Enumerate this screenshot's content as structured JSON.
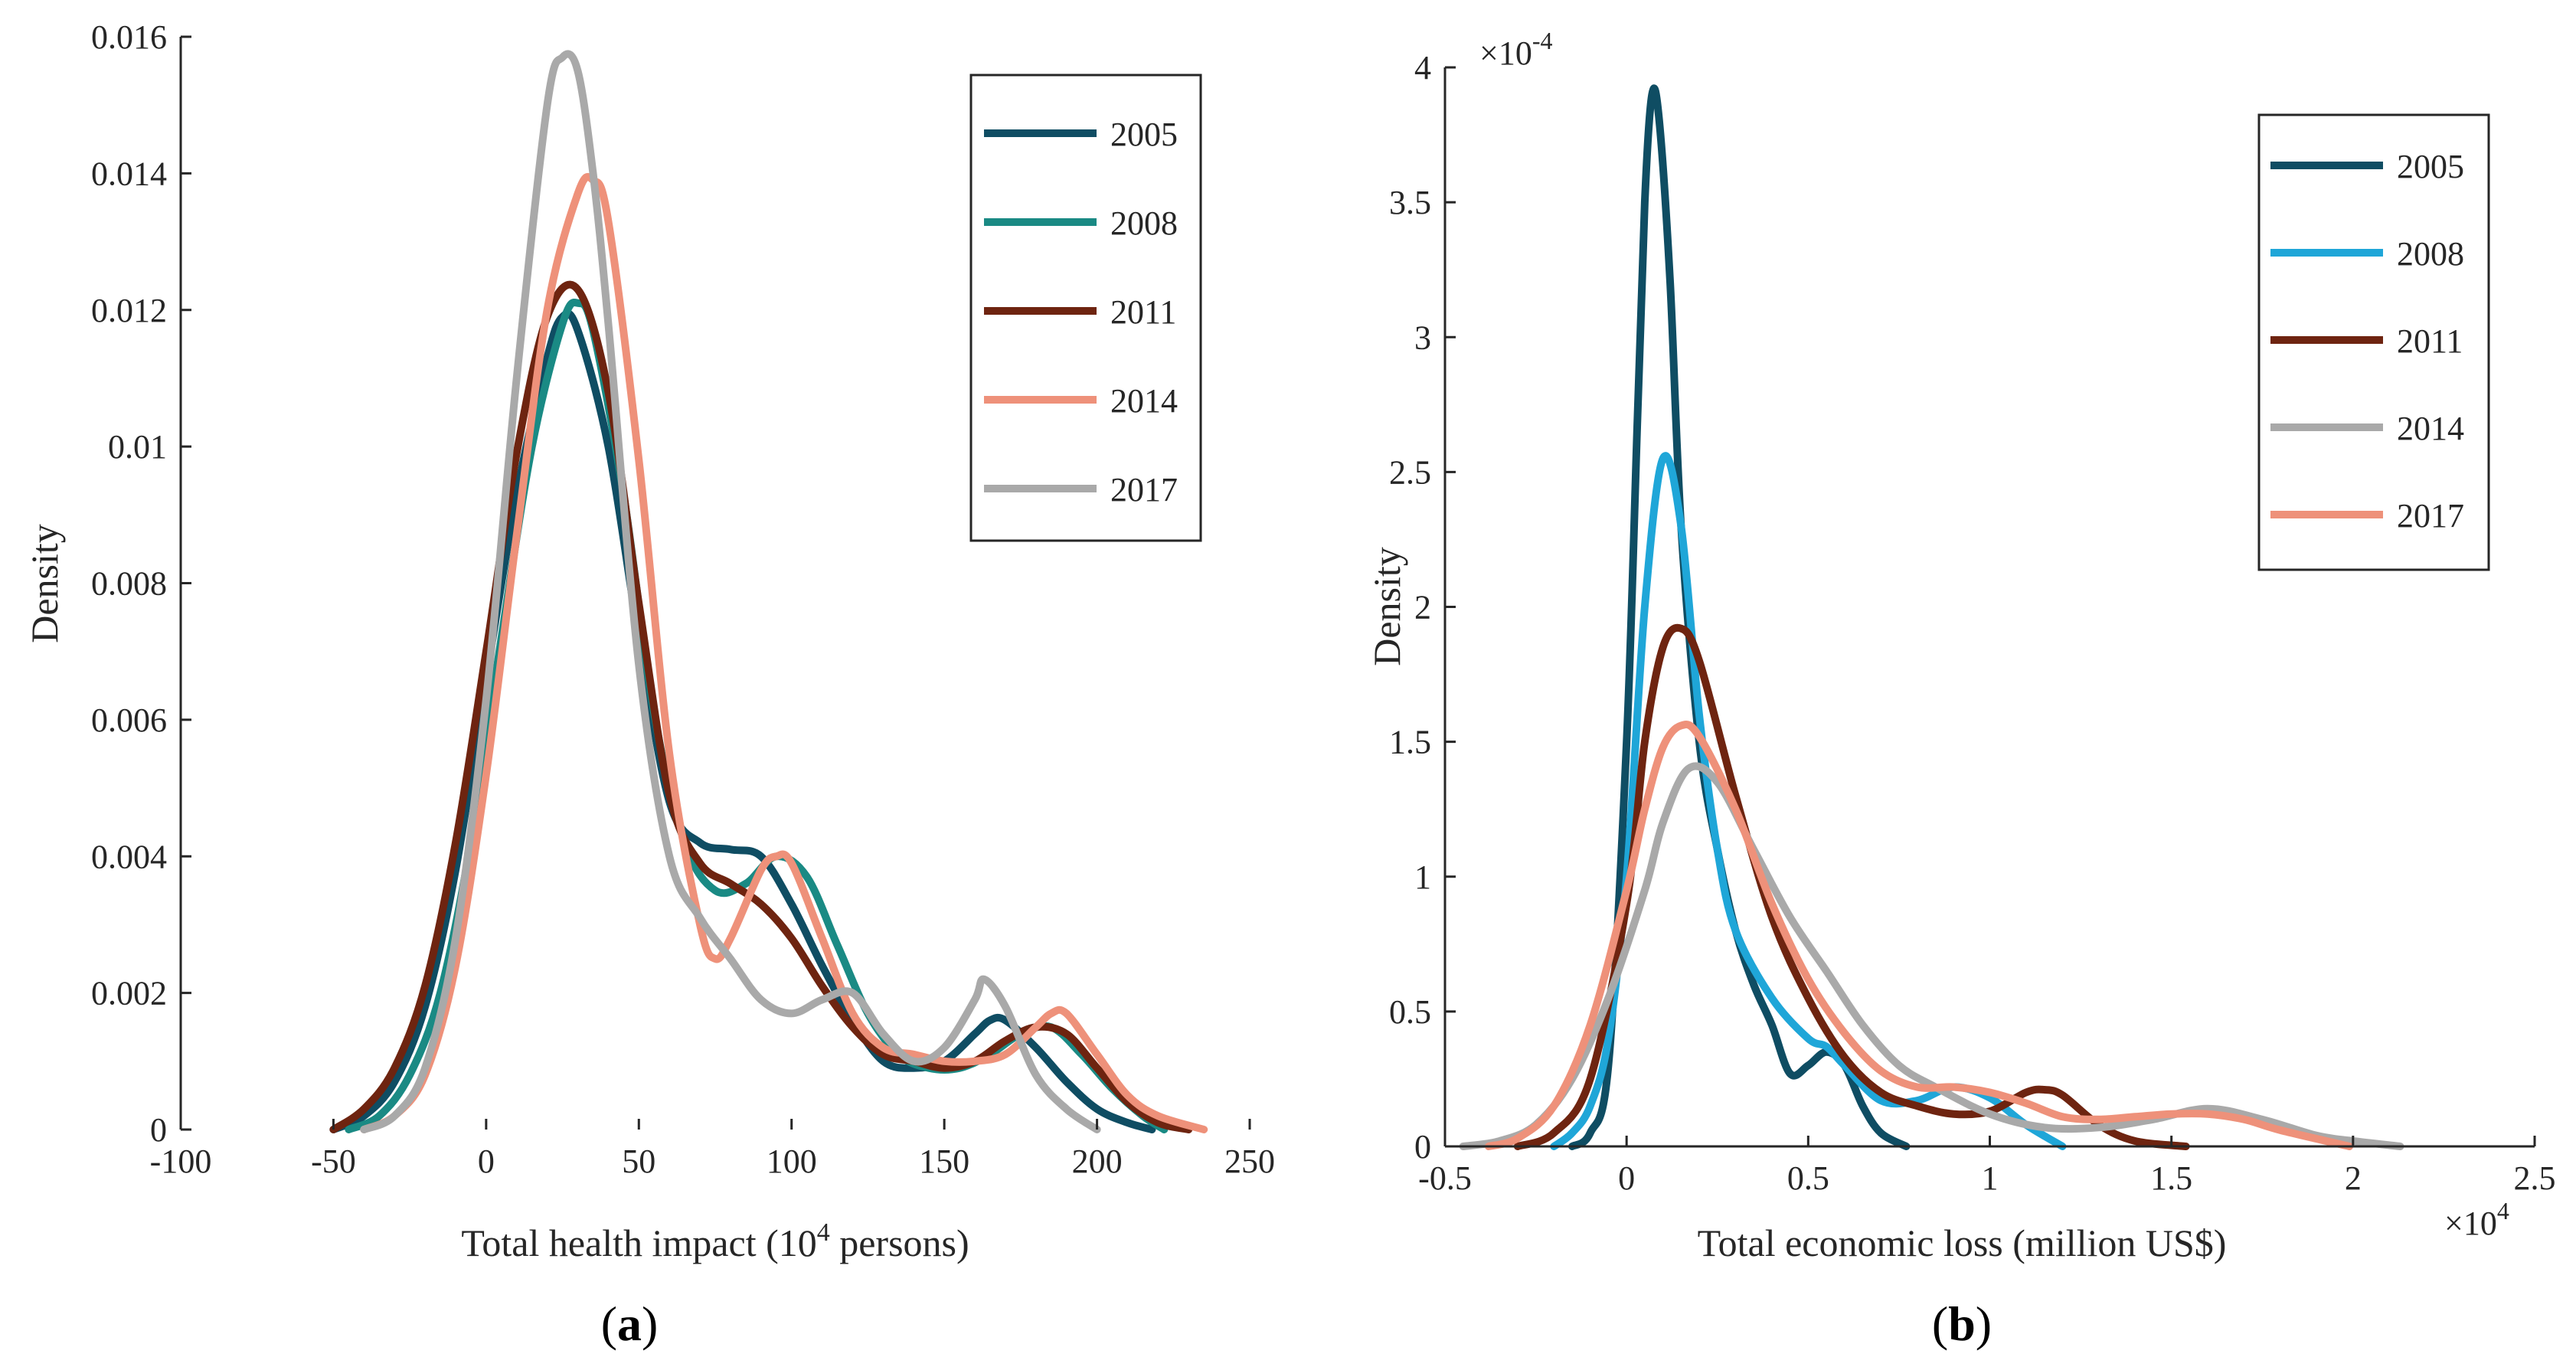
{
  "panels": [
    {
      "label_open": "(",
      "label_letter": "a",
      "label_close": ")",
      "chart_data": {
        "type": "line",
        "title": "",
        "xlabel_pre": "Total health impact (10",
        "xlabel_sup": "4",
        "xlabel_post": " persons)",
        "ylabel": "Density",
        "xlim": [
          -100,
          250
        ],
        "ylim": [
          0,
          0.016
        ],
        "xticks": [
          -100,
          -50,
          0,
          50,
          100,
          150,
          200,
          250
        ],
        "xtick_labels": [
          "-100",
          "-50",
          "0",
          "50",
          "100",
          "150",
          "200",
          "250"
        ],
        "yticks": [
          0,
          0.002,
          0.004,
          0.006,
          0.008,
          0.01,
          0.012,
          0.014,
          0.016
        ],
        "ytick_labels": [
          "0",
          "0.002",
          "0.004",
          "0.006",
          "0.008",
          "0.01",
          "0.012",
          "0.014",
          "0.016"
        ],
        "x_exponent": "",
        "y_exponent": "",
        "legend_position": "top-right",
        "series": [
          {
            "name": "2005",
            "color": "#0f4d63",
            "x": [
              -50,
              -40,
              -30,
              -20,
              -10,
              0,
              10,
              20,
              25,
              30,
              40,
              50,
              60,
              70,
              80,
              90,
              100,
              110,
              120,
              130,
              140,
              150,
              160,
              165,
              170,
              180,
              190,
              200,
              210,
              218
            ],
            "y": [
              0,
              0.0002,
              0.0007,
              0.0018,
              0.0038,
              0.0066,
              0.0093,
              0.0113,
              0.0119,
              0.0117,
              0.01,
              0.0072,
              0.0048,
              0.0042,
              0.0041,
              0.004,
              0.0033,
              0.0024,
              0.0016,
              0.001,
              0.0009,
              0.001,
              0.0014,
              0.0016,
              0.0016,
              0.0012,
              0.0007,
              0.0003,
              0.0001,
              0
            ]
          },
          {
            "name": "2008",
            "color": "#1a8a84",
            "x": [
              -45,
              -35,
              -25,
              -15,
              -5,
              5,
              15,
              25,
              30,
              35,
              45,
              55,
              65,
              75,
              85,
              95,
              105,
              115,
              125,
              135,
              145,
              155,
              165,
              175,
              185,
              195,
              205,
              215,
              222
            ],
            "y": [
              0,
              0.0002,
              0.0008,
              0.002,
              0.0042,
              0.0072,
              0.01,
              0.0118,
              0.0121,
              0.0117,
              0.0093,
              0.0061,
              0.0042,
              0.0035,
              0.0036,
              0.004,
              0.0037,
              0.0027,
              0.0017,
              0.0011,
              0.0009,
              0.0009,
              0.0011,
              0.0014,
              0.0015,
              0.0011,
              0.0006,
              0.0002,
              0
            ]
          },
          {
            "name": "2011",
            "color": "#6e2410",
            "x": [
              -50,
              -40,
              -30,
              -20,
              -10,
              0,
              10,
              20,
              30,
              40,
              50,
              60,
              70,
              80,
              90,
              100,
              110,
              120,
              130,
              140,
              150,
              160,
              170,
              180,
              190,
              200,
              210,
              220,
              230
            ],
            "y": [
              0,
              0.0003,
              0.0009,
              0.0021,
              0.0042,
              0.007,
              0.0099,
              0.0119,
              0.0123,
              0.0108,
              0.0077,
              0.0049,
              0.0039,
              0.0036,
              0.0033,
              0.0028,
              0.0021,
              0.0015,
              0.0011,
              0.001,
              0.0009,
              0.001,
              0.0013,
              0.0015,
              0.0014,
              0.0009,
              0.0004,
              0.0001,
              0
            ]
          },
          {
            "name": "2014",
            "color": "#ee917a",
            "x": [
              -40,
              -30,
              -20,
              -10,
              0,
              10,
              20,
              30,
              35,
              40,
              50,
              60,
              70,
              75,
              80,
              90,
              95,
              100,
              110,
              120,
              130,
              140,
              150,
              160,
              170,
              180,
              185,
              190,
              200,
              210,
              220,
              235
            ],
            "y": [
              0,
              0.0002,
              0.0008,
              0.0024,
              0.0052,
              0.0087,
              0.012,
              0.0137,
              0.0139,
              0.0133,
              0.0098,
              0.0055,
              0.003,
              0.0025,
              0.0028,
              0.0038,
              0.004,
              0.0039,
              0.0028,
              0.0017,
              0.0012,
              0.0011,
              0.001,
              0.001,
              0.0011,
              0.0015,
              0.0017,
              0.0017,
              0.0011,
              0.0005,
              0.0002,
              0
            ]
          },
          {
            "name": "2017",
            "color": "#a9a9a9",
            "x": [
              -40,
              -30,
              -20,
              -10,
              0,
              10,
              20,
              25,
              30,
              35,
              40,
              50,
              60,
              70,
              80,
              90,
              100,
              110,
              120,
              130,
              140,
              150,
              160,
              163,
              170,
              180,
              190,
              200
            ],
            "y": [
              0,
              0.0002,
              0.0009,
              0.0028,
              0.0063,
              0.011,
              0.015,
              0.0157,
              0.0155,
              0.014,
              0.0118,
              0.0068,
              0.004,
              0.0031,
              0.0025,
              0.0019,
              0.0017,
              0.0019,
              0.002,
              0.0014,
              0.001,
              0.0012,
              0.0019,
              0.0022,
              0.0018,
              0.0008,
              0.0003,
              0
            ]
          }
        ]
      }
    },
    {
      "label_open": "(",
      "label_letter": "b",
      "label_close": ")",
      "chart_data": {
        "type": "line",
        "title": "",
        "xlabel_pre": "Total economic loss (million US$)",
        "xlabel_sup": "",
        "xlabel_post": "",
        "ylabel": "Density",
        "xlim": [
          -0.5,
          2.5
        ],
        "ylim": [
          0,
          4
        ],
        "xticks": [
          -0.5,
          0,
          0.5,
          1,
          1.5,
          2,
          2.5
        ],
        "xtick_labels": [
          "-0.5",
          "0",
          "0.5",
          "1",
          "1.5",
          "2",
          "2.5"
        ],
        "yticks": [
          0,
          0.5,
          1,
          1.5,
          2,
          2.5,
          3,
          3.5,
          4
        ],
        "ytick_labels": [
          "0",
          "0.5",
          "1",
          "1.5",
          "2",
          "2.5",
          "3",
          "3.5",
          "4"
        ],
        "x_exponent": "×10",
        "x_exponent_sup": "4",
        "y_exponent": "×10",
        "y_exponent_sup": "-4",
        "legend_position": "top-right",
        "series": [
          {
            "name": "2005",
            "color": "#0f4d63",
            "x": [
              -0.15,
              -0.1,
              -0.05,
              0,
              0.03,
              0.05,
              0.07,
              0.09,
              0.12,
              0.15,
              0.2,
              0.25,
              0.3,
              0.35,
              0.4,
              0.45,
              0.5,
              0.55,
              0.6,
              0.65,
              0.7,
              0.77
            ],
            "y": [
              0,
              0.05,
              0.3,
              1.5,
              2.7,
              3.5,
              3.9,
              3.8,
              3.2,
              2.3,
              1.5,
              1.1,
              0.8,
              0.6,
              0.45,
              0.27,
              0.3,
              0.35,
              0.3,
              0.15,
              0.05,
              0
            ]
          },
          {
            "name": "2008",
            "color": "#1fa6d8",
            "x": [
              -0.2,
              -0.15,
              -0.1,
              -0.05,
              0,
              0.05,
              0.1,
              0.15,
              0.2,
              0.25,
              0.3,
              0.4,
              0.5,
              0.55,
              0.6,
              0.7,
              0.8,
              0.9,
              1,
              1.1,
              1.2
            ],
            "y": [
              0,
              0.05,
              0.15,
              0.4,
              1.0,
              2.0,
              2.55,
              2.3,
              1.6,
              1.1,
              0.8,
              0.55,
              0.4,
              0.37,
              0.3,
              0.17,
              0.17,
              0.22,
              0.18,
              0.08,
              0
            ]
          },
          {
            "name": "2011",
            "color": "#6e2410",
            "x": [
              -0.3,
              -0.2,
              -0.1,
              0,
              0.05,
              0.1,
              0.15,
              0.2,
              0.3,
              0.4,
              0.5,
              0.6,
              0.7,
              0.8,
              0.9,
              1.0,
              1.1,
              1.15,
              1.2,
              1.3,
              1.4,
              1.54
            ],
            "y": [
              0,
              0.05,
              0.25,
              0.9,
              1.5,
              1.85,
              1.92,
              1.8,
              1.3,
              0.85,
              0.55,
              0.33,
              0.2,
              0.15,
              0.12,
              0.13,
              0.2,
              0.21,
              0.19,
              0.08,
              0.02,
              0
            ]
          },
          {
            "name": "2014",
            "color": "#a9a9a9",
            "x": [
              -0.45,
              -0.35,
              -0.25,
              -0.15,
              -0.05,
              0.05,
              0.1,
              0.17,
              0.25,
              0.35,
              0.45,
              0.55,
              0.65,
              0.75,
              0.85,
              1.0,
              1.15,
              1.3,
              1.45,
              1.6,
              1.75,
              1.9,
              2.0,
              2.13
            ],
            "y": [
              0,
              0.02,
              0.08,
              0.25,
              0.55,
              0.95,
              1.2,
              1.4,
              1.35,
              1.1,
              0.85,
              0.65,
              0.45,
              0.3,
              0.22,
              0.12,
              0.07,
              0.07,
              0.1,
              0.14,
              0.1,
              0.04,
              0.02,
              0
            ]
          },
          {
            "name": "2017",
            "color": "#ee917a",
            "x": [
              -0.38,
              -0.3,
              -0.2,
              -0.1,
              0,
              0.05,
              0.1,
              0.15,
              0.2,
              0.3,
              0.4,
              0.5,
              0.6,
              0.7,
              0.8,
              0.9,
              1.0,
              1.1,
              1.2,
              1.3,
              1.4,
              1.5,
              1.6,
              1.7,
              1.8,
              1.99
            ],
            "y": [
              0,
              0.03,
              0.15,
              0.45,
              0.95,
              1.25,
              1.48,
              1.56,
              1.52,
              1.25,
              0.9,
              0.62,
              0.42,
              0.28,
              0.22,
              0.22,
              0.2,
              0.16,
              0.11,
              0.1,
              0.11,
              0.12,
              0.12,
              0.1,
              0.06,
              0
            ]
          }
        ]
      }
    }
  ]
}
